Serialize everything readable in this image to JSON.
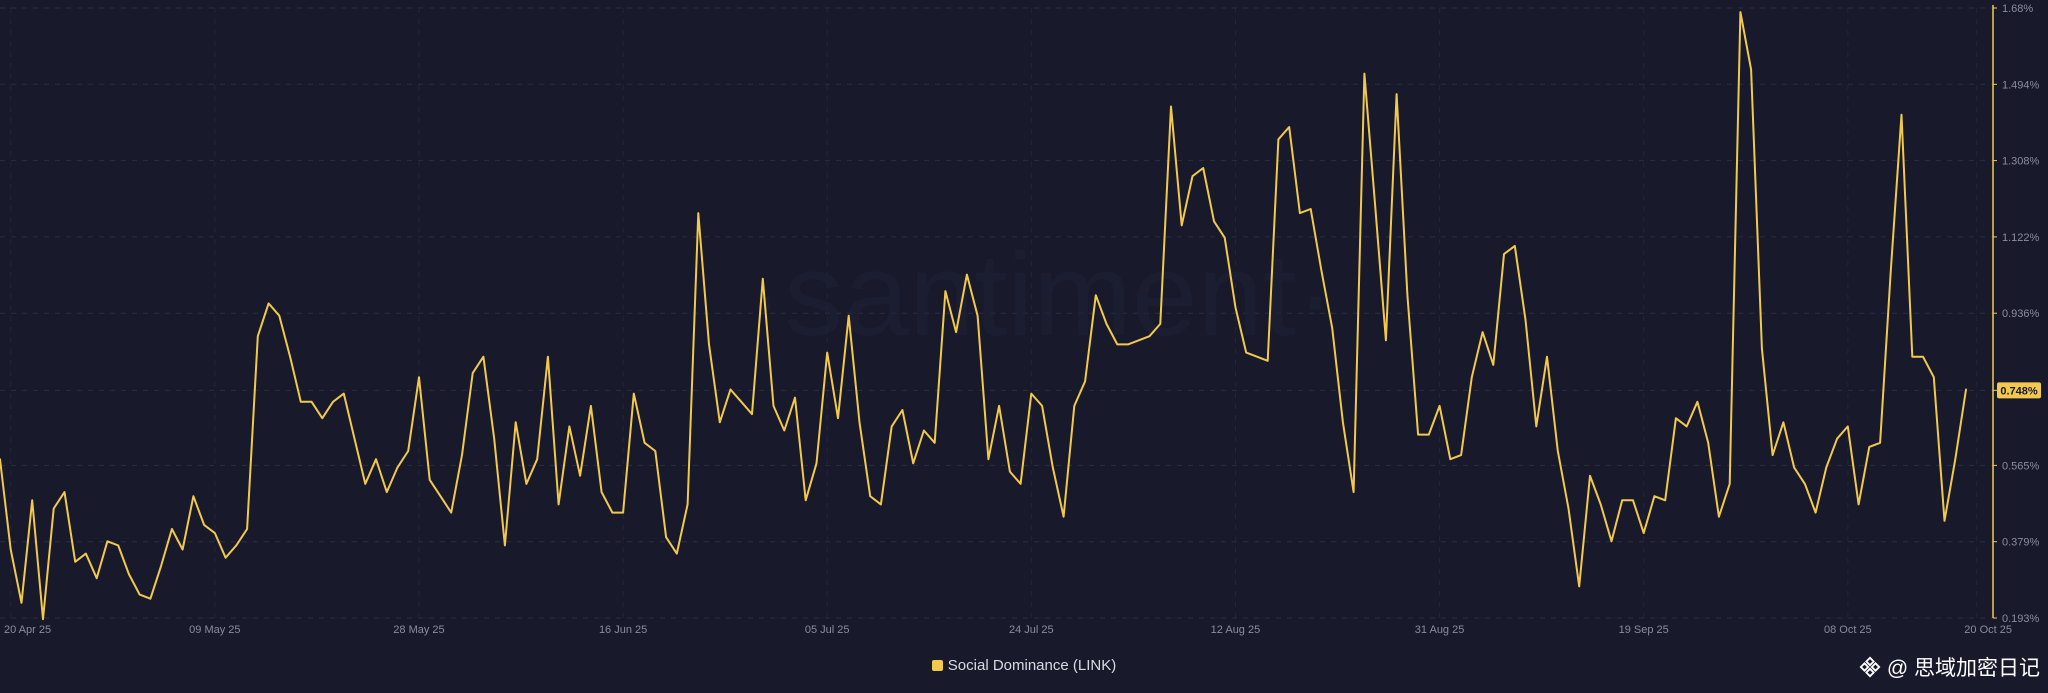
{
  "watermark": "·santiment·",
  "credit": {
    "text": "@ 思域加密日记",
    "icon": "binance-diamond-icon"
  },
  "legend": {
    "label": "Social Dominance (LINK)",
    "color": "#f2c94c"
  },
  "colors": {
    "background": "#181a2b",
    "line": "#f2c94c",
    "grid": "#2a2d44",
    "axis_text": "#8a8ca0",
    "badge_text": "#181a2b"
  },
  "chart_data": {
    "type": "line",
    "title": "",
    "xlabel": "",
    "ylabel": "",
    "ylim": [
      0.193,
      1.68
    ],
    "y_ticks": [
      "0.193%",
      "0.379%",
      "0.565%",
      "0.748%",
      "0.936%",
      "1.122%",
      "1.308%",
      "1.494%",
      "1.68%"
    ],
    "y_tick_values": [
      0.193,
      0.379,
      0.565,
      0.748,
      0.936,
      1.122,
      1.308,
      1.494,
      1.68
    ],
    "x_ticks": [
      "20 Apr 25",
      "09 May 25",
      "28 May 25",
      "16 Jun 25",
      "05 Jul 25",
      "24 Jul 25",
      "12 Aug 25",
      "31 Aug 25",
      "19 Sep 25",
      "08 Oct 25",
      "20 Oct 25"
    ],
    "x_tick_days": [
      0,
      19,
      38,
      57,
      76,
      95,
      114,
      133,
      152,
      171,
      183
    ],
    "current_value": 0.748,
    "current_label": "0.748%",
    "grid": true,
    "legend_position": "bottom-center",
    "series": [
      {
        "name": "Social Dominance (LINK)",
        "x_start": "19 Apr 25",
        "x_step": "1 day",
        "values": [
          0.58,
          0.36,
          0.23,
          0.48,
          0.19,
          0.46,
          0.5,
          0.33,
          0.35,
          0.29,
          0.38,
          0.37,
          0.3,
          0.25,
          0.24,
          0.32,
          0.41,
          0.36,
          0.49,
          0.42,
          0.4,
          0.34,
          0.37,
          0.41,
          0.88,
          0.96,
          0.93,
          0.83,
          0.72,
          0.72,
          0.68,
          0.72,
          0.74,
          0.63,
          0.52,
          0.58,
          0.5,
          0.56,
          0.6,
          0.78,
          0.53,
          0.49,
          0.45,
          0.59,
          0.79,
          0.83,
          0.63,
          0.37,
          0.67,
          0.52,
          0.58,
          0.83,
          0.47,
          0.66,
          0.54,
          0.71,
          0.5,
          0.45,
          0.45,
          0.74,
          0.62,
          0.6,
          0.39,
          0.35,
          0.47,
          1.18,
          0.86,
          0.67,
          0.75,
          0.72,
          0.69,
          1.02,
          0.71,
          0.65,
          0.73,
          0.48,
          0.57,
          0.84,
          0.68,
          0.93,
          0.67,
          0.49,
          0.47,
          0.66,
          0.7,
          0.57,
          0.65,
          0.62,
          0.99,
          0.89,
          1.03,
          0.93,
          0.58,
          0.71,
          0.55,
          0.52,
          0.74,
          0.71,
          0.56,
          0.44,
          0.71,
          0.77,
          0.98,
          0.91,
          0.86,
          0.86,
          0.87,
          0.88,
          0.91,
          1.44,
          1.15,
          1.27,
          1.29,
          1.16,
          1.12,
          0.95,
          0.84,
          0.83,
          0.82,
          1.36,
          1.39,
          1.18,
          1.19,
          1.04,
          0.9,
          0.67,
          0.5,
          1.52,
          1.2,
          0.87,
          1.47,
          0.98,
          0.64,
          0.64,
          0.71,
          0.58,
          0.59,
          0.78,
          0.89,
          0.81,
          1.08,
          1.1,
          0.92,
          0.66,
          0.83,
          0.6,
          0.46,
          0.27,
          0.54,
          0.47,
          0.38,
          0.48,
          0.48,
          0.4,
          0.49,
          0.48,
          0.68,
          0.66,
          0.72,
          0.62,
          0.44,
          0.52,
          1.67,
          1.53,
          0.85,
          0.59,
          0.67,
          0.56,
          0.52,
          0.45,
          0.56,
          0.63,
          0.66,
          0.47,
          0.61,
          0.62,
          1.04,
          1.42,
          0.83,
          0.83,
          0.78,
          0.43,
          0.58,
          0.75
        ]
      }
    ]
  }
}
